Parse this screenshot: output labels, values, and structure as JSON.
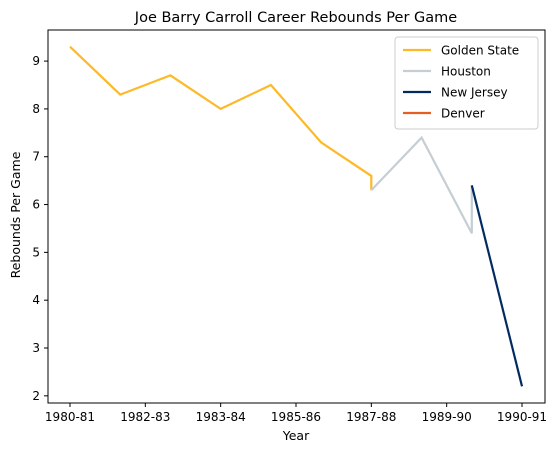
{
  "chart_data": {
    "type": "line",
    "title": "Joe Barry Carroll Career Rebounds Per Game",
    "xlabel": "Year",
    "ylabel": "Rebounds Per Game",
    "x_ticks": [
      "1980-81",
      "1982-83",
      "1983-84",
      "1985-86",
      "1987-88",
      "1989-90",
      "1990-91"
    ],
    "xlim": [
      0,
      9
    ],
    "ylim": [
      1.85,
      9.65
    ],
    "y_ticks": [
      2,
      3,
      4,
      5,
      6,
      7,
      8,
      9
    ],
    "grid": false,
    "legend_position": "top-right",
    "series": [
      {
        "name": "Golden State",
        "color": "#FDB927",
        "points": [
          [
            0,
            9.3
          ],
          [
            1,
            8.3
          ],
          [
            2,
            8.7
          ],
          [
            3,
            8.0
          ],
          [
            4,
            8.5
          ],
          [
            5,
            7.3
          ],
          [
            6,
            6.6
          ],
          [
            6,
            6.3
          ]
        ]
      },
      {
        "name": "Houston",
        "color": "#C4CED4",
        "points": [
          [
            6,
            6.3
          ],
          [
            7,
            7.4
          ],
          [
            8,
            5.4
          ],
          [
            8,
            6.4
          ]
        ]
      },
      {
        "name": "New Jersey",
        "color": "#002A60",
        "points": [
          [
            8,
            6.4
          ],
          [
            9,
            2.2
          ]
        ]
      },
      {
        "name": "Denver",
        "color": "#E56020",
        "points": []
      }
    ]
  }
}
